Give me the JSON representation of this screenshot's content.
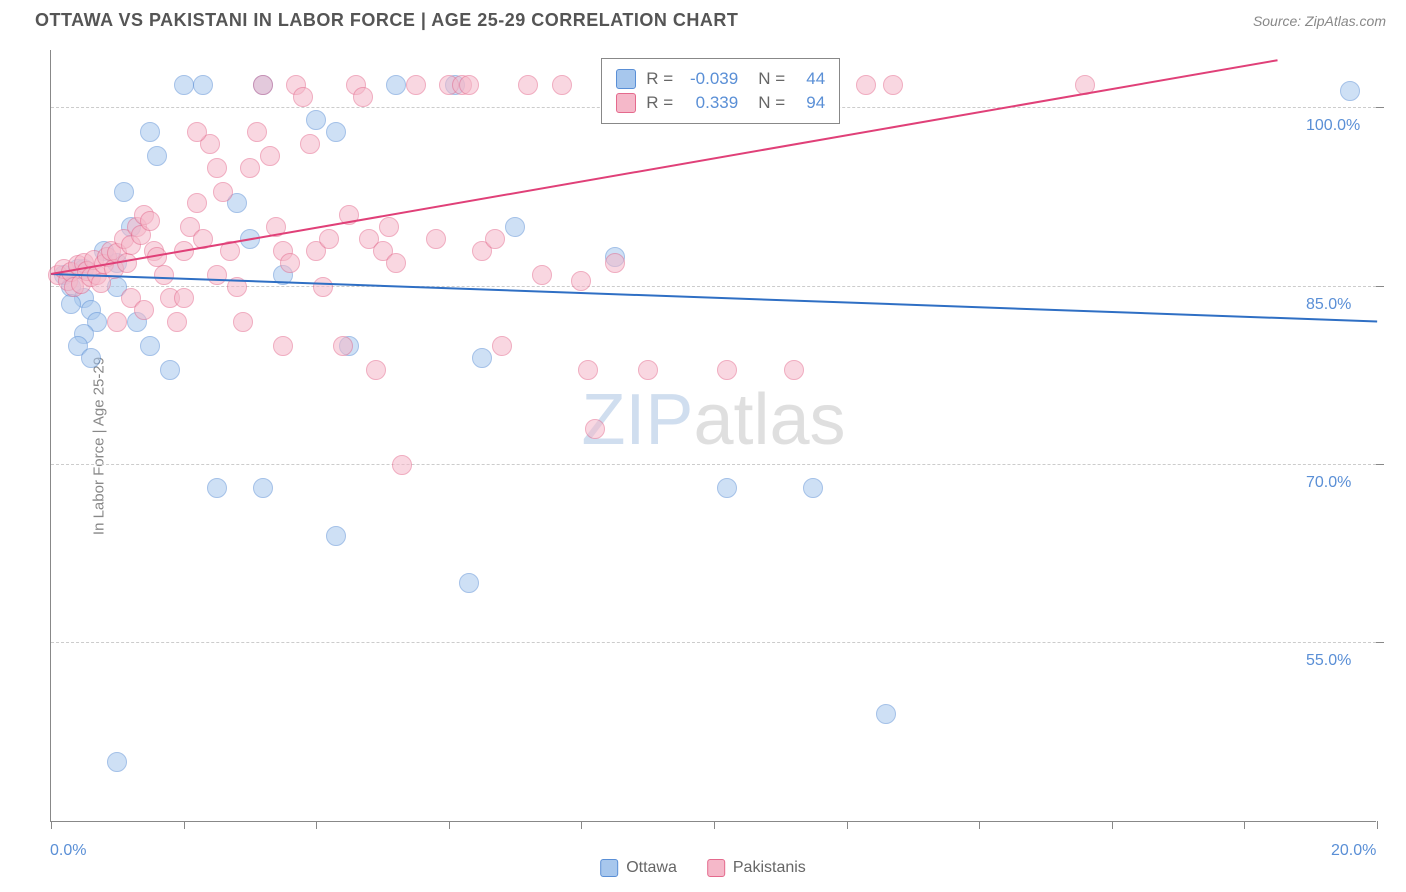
{
  "title": "OTTAWA VS PAKISTANI IN LABOR FORCE | AGE 25-29 CORRELATION CHART",
  "source_label": "Source: ZipAtlas.com",
  "ylabel": "In Labor Force | Age 25-29",
  "watermark": {
    "part1": "ZIP",
    "part2": "atlas"
  },
  "chart": {
    "type": "scatter",
    "xlim": [
      0,
      20
    ],
    "ylim": [
      40,
      105
    ],
    "xtick_positions": [
      0,
      2,
      4,
      6,
      8,
      10,
      12,
      14,
      16,
      18,
      20
    ],
    "xtick_labels": {
      "0": "0.0%",
      "20": "20.0%"
    },
    "ytick_positions": [
      55,
      70,
      85,
      100
    ],
    "ytick_labels": {
      "55": "55.0%",
      "70": "70.0%",
      "85": "85.0%",
      "100": "100.0%"
    },
    "grid_color": "#cccccc",
    "axis_color": "#888888",
    "background_color": "#ffffff",
    "point_radius": 10,
    "point_opacity": 0.55,
    "series": [
      {
        "name": "Ottawa",
        "fill": "#a7c7ed",
        "stroke": "#5a8fd6",
        "stats": {
          "R": "-0.039",
          "N": "44"
        },
        "trend": {
          "x1": 0,
          "y1": 86,
          "x2": 20,
          "y2": 82,
          "color": "#2f6fc4",
          "width": 2
        },
        "points": [
          [
            0.2,
            86
          ],
          [
            0.3,
            85
          ],
          [
            0.4,
            86.5
          ],
          [
            0.5,
            84
          ],
          [
            0.6,
            83
          ],
          [
            0.7,
            82
          ],
          [
            0.5,
            81
          ],
          [
            0.4,
            80
          ],
          [
            0.6,
            79
          ],
          [
            0.8,
            88
          ],
          [
            1.0,
            87
          ],
          [
            1.2,
            90
          ],
          [
            1.5,
            98
          ],
          [
            1.6,
            96
          ],
          [
            1.0,
            85
          ],
          [
            1.3,
            82
          ],
          [
            1.5,
            80
          ],
          [
            1.8,
            78
          ],
          [
            1.1,
            93
          ],
          [
            2.0,
            102
          ],
          [
            2.3,
            102
          ],
          [
            2.8,
            92
          ],
          [
            3.2,
            102
          ],
          [
            4.0,
            99
          ],
          [
            4.3,
            98
          ],
          [
            5.2,
            102
          ],
          [
            6.1,
            102
          ],
          [
            6.5,
            79
          ],
          [
            3.0,
            89
          ],
          [
            3.5,
            86
          ],
          [
            4.5,
            80
          ],
          [
            2.5,
            68
          ],
          [
            3.2,
            68
          ],
          [
            4.3,
            64
          ],
          [
            6.3,
            60
          ],
          [
            7.0,
            90
          ],
          [
            8.5,
            87.5
          ],
          [
            10.2,
            68
          ],
          [
            11.5,
            68
          ],
          [
            1.0,
            45
          ],
          [
            12.6,
            49
          ],
          [
            19.6,
            101.5
          ],
          [
            0.5,
            86.5
          ],
          [
            0.3,
            83.5
          ]
        ]
      },
      {
        "name": "Pakistanis",
        "fill": "#f5b8c9",
        "stroke": "#e46a8d",
        "stats": {
          "R": "0.339",
          "N": "94"
        },
        "trend": {
          "x1": 0,
          "y1": 86,
          "x2": 18.5,
          "y2": 104,
          "color": "#e04078",
          "width": 2
        },
        "points": [
          [
            0.1,
            86
          ],
          [
            0.2,
            86.5
          ],
          [
            0.25,
            85.5
          ],
          [
            0.3,
            86.2
          ],
          [
            0.35,
            85
          ],
          [
            0.4,
            86.8
          ],
          [
            0.45,
            85.2
          ],
          [
            0.5,
            87
          ],
          [
            0.55,
            86.3
          ],
          [
            0.6,
            85.8
          ],
          [
            0.65,
            87.2
          ],
          [
            0.7,
            86
          ],
          [
            0.75,
            85.3
          ],
          [
            0.8,
            86.9
          ],
          [
            0.85,
            87.5
          ],
          [
            0.9,
            88
          ],
          [
            0.95,
            86.5
          ],
          [
            1.0,
            87.8
          ],
          [
            1.1,
            89
          ],
          [
            1.15,
            87
          ],
          [
            1.2,
            88.5
          ],
          [
            1.3,
            90
          ],
          [
            1.35,
            89.3
          ],
          [
            1.4,
            91
          ],
          [
            1.5,
            90.5
          ],
          [
            1.55,
            88
          ],
          [
            1.6,
            87.5
          ],
          [
            1.7,
            86
          ],
          [
            1.8,
            84
          ],
          [
            1.9,
            82
          ],
          [
            2.0,
            88
          ],
          [
            2.1,
            90
          ],
          [
            2.2,
            92
          ],
          [
            2.3,
            89
          ],
          [
            2.4,
            97
          ],
          [
            2.5,
            95
          ],
          [
            2.6,
            93
          ],
          [
            2.7,
            88
          ],
          [
            2.8,
            85
          ],
          [
            2.9,
            82
          ],
          [
            3.0,
            95
          ],
          [
            3.1,
            98
          ],
          [
            3.2,
            102
          ],
          [
            3.3,
            96
          ],
          [
            3.4,
            90
          ],
          [
            3.5,
            88
          ],
          [
            3.6,
            87
          ],
          [
            3.7,
            102
          ],
          [
            3.8,
            101
          ],
          [
            3.9,
            97
          ],
          [
            4.0,
            88
          ],
          [
            4.1,
            85
          ],
          [
            4.2,
            89
          ],
          [
            4.4,
            80
          ],
          [
            4.5,
            91
          ],
          [
            4.6,
            102
          ],
          [
            4.7,
            101
          ],
          [
            4.8,
            89
          ],
          [
            4.9,
            78
          ],
          [
            5.0,
            88
          ],
          [
            5.1,
            90
          ],
          [
            5.2,
            87
          ],
          [
            5.5,
            102
          ],
          [
            5.8,
            89
          ],
          [
            6.0,
            102
          ],
          [
            6.2,
            102
          ],
          [
            6.3,
            102
          ],
          [
            6.5,
            88
          ],
          [
            6.7,
            89
          ],
          [
            6.8,
            80
          ],
          [
            7.2,
            102
          ],
          [
            7.4,
            86
          ],
          [
            7.7,
            102
          ],
          [
            8.0,
            85.5
          ],
          [
            8.1,
            78
          ],
          [
            8.2,
            73
          ],
          [
            8.5,
            87
          ],
          [
            9.0,
            78
          ],
          [
            9.5,
            102
          ],
          [
            10.0,
            102
          ],
          [
            10.2,
            78
          ],
          [
            11.2,
            78
          ],
          [
            11.2,
            102
          ],
          [
            12.3,
            102
          ],
          [
            12.7,
            102
          ],
          [
            15.6,
            102
          ],
          [
            1.0,
            82
          ],
          [
            1.2,
            84
          ],
          [
            1.4,
            83
          ],
          [
            2.0,
            84
          ],
          [
            2.2,
            98
          ],
          [
            2.5,
            86
          ],
          [
            3.5,
            80
          ],
          [
            5.3,
            70
          ]
        ]
      }
    ]
  },
  "legend": [
    {
      "label": "Ottawa",
      "fill": "#a7c7ed",
      "stroke": "#5a8fd6"
    },
    {
      "label": "Pakistanis",
      "fill": "#f5b8c9",
      "stroke": "#e46a8d"
    }
  ],
  "stats_box": {
    "rows": [
      {
        "swatch_fill": "#a7c7ed",
        "swatch_stroke": "#5a8fd6",
        "R": "-0.039",
        "N": "44"
      },
      {
        "swatch_fill": "#f5b8c9",
        "swatch_stroke": "#e46a8d",
        "R": "0.339",
        "N": "94"
      }
    ],
    "label_R": "R =",
    "label_N": "N ="
  },
  "colors": {
    "title_text": "#555555",
    "source_text": "#888888",
    "value_text": "#5a8fd6"
  }
}
